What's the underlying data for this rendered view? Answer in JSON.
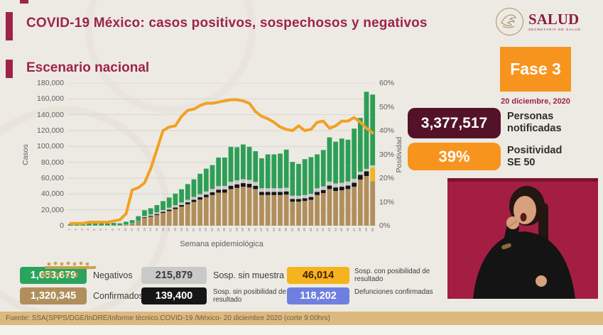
{
  "header": {
    "title": "COVID-19 México: casos positivos, sospechosos y negativos",
    "logo_name": "SALUD",
    "logo_subtitle": "SECRETARÍA DE SALUD"
  },
  "section_title": "Escenario nacional",
  "phase": {
    "label": "Fase 3",
    "date": "20 diciembre, 2020"
  },
  "stats": {
    "notified_value": "3,377,517",
    "notified_label": "Personas\nnotificadas",
    "positivity_value": "39%",
    "positivity_label": "Positividad\nSE 50"
  },
  "colors": {
    "maroon": "#9D2449",
    "dark_pill": "#541228",
    "orange": "#F7941E",
    "line_orange": "#F2A024",
    "green": "#2E9E57",
    "tan": "#B08F5D",
    "gray": "#C9C9C9",
    "black": "#161616",
    "yellow": "#F5B31E",
    "blue": "#6F7FE0",
    "interpreter_bg": "#A41E44",
    "footer_bg": "#DCB97E"
  },
  "mexico_watermark": "MÉXICO",
  "legend": [
    {
      "value": "1,653,679",
      "label": "Negativos",
      "bg": "#2AA45C",
      "fg": "#FFFFFF",
      "two_line": false
    },
    {
      "value": "215,879",
      "label": "Sosp. sin muestra",
      "bg": "#C9C9C9",
      "fg": "#3A3A3A",
      "two_line": false
    },
    {
      "value": "46,014",
      "label": "Sosp. con posibilidad de resultado",
      "bg": "#F5B31E",
      "fg": "#44200E",
      "two_line": true
    },
    {
      "value": "1,320,345",
      "label": "Confirmados",
      "bg": "#B08F5D",
      "fg": "#FFFFFF",
      "two_line": false
    },
    {
      "value": "139,400",
      "label": "Sosp. sin posibilidad de resultado",
      "bg": "#161616",
      "fg": "#FFFFFF",
      "two_line": true
    },
    {
      "value": "118,202",
      "label": "Defunciones confirmadas",
      "bg": "#6F7FE0",
      "fg": "#FFFFFF",
      "two_line": true
    }
  ],
  "footer": "Fuente: SSA(SPPS/DGE/InDRE/Informe técnico.COVID-19 /México- 20 diciembre 2020 (corte 9:00hrs)",
  "chart_data": {
    "type": "bar",
    "subtype": "stacked-bars-with-line",
    "title": "Escenario nacional",
    "xlabel": "Semana epidemiológica",
    "ylabel_left": "Casos",
    "ylabel_right": "Positividad",
    "ylim_left": [
      0,
      180000
    ],
    "ylim_right": [
      0,
      60
    ],
    "grid": true,
    "yticks_left": [
      "0",
      "20,000",
      "40,000",
      "60,000",
      "80,000",
      "100,000",
      "120,000",
      "140,000",
      "160,000",
      "180,000"
    ],
    "yticks_right": [
      "0%",
      "10%",
      "20%",
      "30%",
      "40%",
      "50%",
      "60%"
    ],
    "x": [
      1,
      2,
      3,
      4,
      5,
      6,
      7,
      8,
      9,
      10,
      11,
      12,
      13,
      14,
      15,
      16,
      17,
      18,
      19,
      20,
      21,
      22,
      23,
      24,
      25,
      26,
      27,
      28,
      29,
      30,
      31,
      32,
      33,
      34,
      35,
      36,
      37,
      38,
      39,
      40,
      41,
      42,
      43,
      44,
      45,
      46,
      47,
      48,
      49,
      50
    ],
    "series": [
      {
        "name": "Confirmados",
        "color": "#B08F5D",
        "values": [
          100,
          150,
          200,
          250,
          250,
          250,
          250,
          300,
          400,
          1200,
          2200,
          4500,
          10000,
          11500,
          13500,
          16000,
          18500,
          21000,
          24000,
          27000,
          30000,
          33000,
          36000,
          38700,
          41700,
          41700,
          46200,
          47700,
          49200,
          48300,
          46200,
          38700,
          38700,
          38700,
          38700,
          39300,
          30300,
          30300,
          31200,
          32700,
          38700,
          41100,
          46200,
          43800,
          44700,
          46200,
          49200,
          58200,
          62700,
          56100
        ]
      },
      {
        "name": "Sosp. sin posibilidad de resultado",
        "color": "#161616",
        "values": [
          0,
          0,
          0,
          0,
          0,
          0,
          0,
          0,
          100,
          200,
          300,
          500,
          800,
          1000,
          1200,
          1500,
          1800,
          2000,
          2200,
          2500,
          2800,
          3000,
          3200,
          3500,
          3800,
          4000,
          4200,
          4500,
          4500,
          4500,
          4200,
          4000,
          4000,
          4000,
          4000,
          4000,
          3500,
          3500,
          3500,
          3500,
          4000,
          4000,
          4500,
          4500,
          4500,
          4500,
          5000,
          6000,
          6000,
          0
        ]
      },
      {
        "name": "Sosp. con posibilidad de resultado",
        "color": "#F5B31E",
        "values": [
          0,
          0,
          0,
          0,
          0,
          0,
          0,
          0,
          0,
          0,
          0,
          0,
          0,
          0,
          0,
          0,
          0,
          0,
          0,
          0,
          0,
          0,
          0,
          0,
          0,
          0,
          0,
          0,
          0,
          0,
          0,
          0,
          0,
          0,
          0,
          0,
          0,
          0,
          0,
          0,
          0,
          0,
          0,
          0,
          0,
          0,
          0,
          0,
          0,
          17100
        ]
      },
      {
        "name": "Sosp. sin muestra",
        "color": "#C9C9C9",
        "values": [
          0,
          0,
          0,
          100,
          100,
          100,
          100,
          100,
          200,
          400,
          600,
          1000,
          1500,
          1800,
          2000,
          2200,
          2500,
          2800,
          3000,
          3200,
          3500,
          3800,
          4000,
          4200,
          4500,
          4500,
          5000,
          5000,
          5000,
          5000,
          4800,
          4500,
          4500,
          4500,
          4500,
          4500,
          4000,
          4000,
          4000,
          4000,
          4500,
          4500,
          5000,
          5000,
          5000,
          5000,
          5000,
          4000,
          3000,
          3000
        ]
      },
      {
        "name": "Negativos",
        "color": "#2E9E57",
        "values": [
          1900,
          2350,
          2800,
          3150,
          3150,
          2650,
          2650,
          3100,
          2300,
          3200,
          3900,
          6000,
          7200,
          7700,
          9300,
          11300,
          12700,
          14700,
          16800,
          19800,
          22200,
          25700,
          28800,
          30100,
          36000,
          35800,
          44100,
          41800,
          43800,
          41700,
          38800,
          37800,
          42800,
          42800,
          43800,
          48200,
          42700,
          40200,
          45300,
          46300,
          42800,
          45900,
          55800,
          52700,
          55800,
          52800,
          63300,
          67800,
          97300,
          89300
        ]
      }
    ],
    "line": {
      "name": "Positividad (%)",
      "color": "#F2A024",
      "values": [
        1,
        1,
        1,
        1.5,
        1.5,
        1.5,
        1.5,
        2,
        2.5,
        5,
        15,
        16,
        18,
        24,
        32,
        40,
        41.5,
        42,
        46,
        48.5,
        49,
        50.5,
        51.5,
        51.5,
        52,
        52.5,
        53,
        53,
        52.5,
        51.5,
        48,
        46,
        45,
        43.5,
        41.5,
        40.5,
        40,
        42,
        40,
        40.5,
        43.5,
        44,
        41,
        42,
        44,
        44,
        45.5,
        43.5,
        41,
        39
      ]
    }
  }
}
